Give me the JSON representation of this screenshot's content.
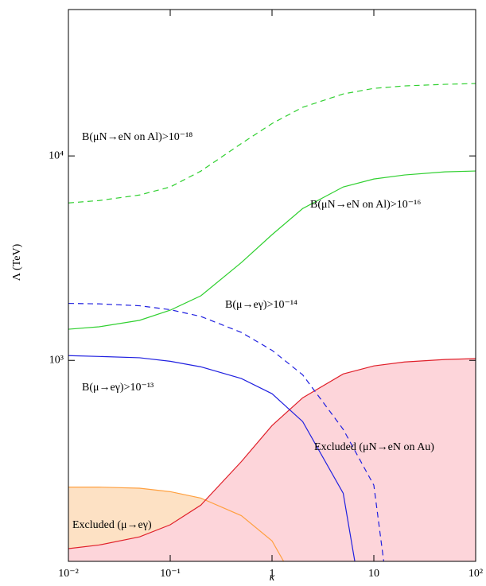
{
  "chart_data": {
    "type": "line",
    "x_label": "κ",
    "y_label": "Λ (TeV)",
    "xscale": "log",
    "yscale": "log",
    "xlim": [
      0.01,
      100
    ],
    "ylim": [
      104,
      52000
    ],
    "xticks": [
      {
        "value": 0.01,
        "label": "10⁻²"
      },
      {
        "value": 0.1,
        "label": "10⁻¹"
      },
      1,
      10,
      {
        "value": 100,
        "label": "10²"
      }
    ],
    "yticks": [
      {
        "value": 1000,
        "label": "10³"
      },
      {
        "value": 10000,
        "label": "10⁴"
      }
    ],
    "series": [
      {
        "color": "#ffa040",
        "dash": false,
        "fill": "#fde1c4",
        "x": [
          0.01,
          0.02,
          0.05,
          0.1,
          0.2,
          0.5,
          1,
          1.3
        ],
        "values": [
          240,
          240,
          237,
          228,
          212,
          174,
          131,
          104
        ]
      },
      {
        "color": "#e0202a",
        "dash": false,
        "fill": "#fdd5da",
        "x": [
          0.01,
          0.02,
          0.05,
          0.1,
          0.2,
          0.5,
          1,
          2,
          5,
          10,
          20,
          50,
          100
        ],
        "values": [
          120,
          125,
          137,
          157,
          196,
          320,
          480,
          656,
          858,
          940,
          982,
          1010,
          1020
        ]
      },
      {
        "color": "#2020e0",
        "dash": false,
        "x": [
          0.01,
          0.02,
          0.05,
          0.1,
          0.2,
          0.5,
          1,
          2,
          5,
          6.5
        ],
        "values": [
          1055,
          1045,
          1030,
          990,
          930,
          815,
          687,
          502,
          224,
          104
        ]
      },
      {
        "color": "#2020e0",
        "dash": true,
        "x": [
          0.01,
          0.02,
          0.05,
          0.1,
          0.2,
          0.5,
          1,
          2,
          5,
          10,
          12.5
        ],
        "values": [
          1900,
          1890,
          1850,
          1770,
          1640,
          1370,
          1120,
          850,
          460,
          245,
          104
        ]
      },
      {
        "color": "#30d030",
        "dash": false,
        "x": [
          0.01,
          0.02,
          0.05,
          0.1,
          0.2,
          0.5,
          1,
          2,
          5,
          10,
          20,
          50,
          100
        ],
        "values": [
          1420,
          1460,
          1570,
          1760,
          2070,
          3010,
          4120,
          5530,
          7050,
          7710,
          8070,
          8360,
          8440
        ]
      },
      {
        "color": "#30d030",
        "dash": true,
        "x": [
          0.01,
          0.02,
          0.05,
          0.1,
          0.2,
          0.5,
          1,
          2,
          5,
          10,
          20,
          50,
          100
        ],
        "values": [
          5890,
          6050,
          6440,
          7050,
          8430,
          11500,
          14400,
          17300,
          20100,
          21400,
          22000,
          22400,
          22600
        ]
      }
    ],
    "annotations": [
      "B(μN→eN on Al)>10⁻¹⁸",
      "B(μN→eN on Al)>10⁻¹⁶",
      "B(μ→eγ)>10⁻¹⁴",
      "B(μ→eγ)>10⁻¹³",
      "Excluded (μN→eN on Au)",
      "Excluded (μ→eγ)"
    ]
  }
}
